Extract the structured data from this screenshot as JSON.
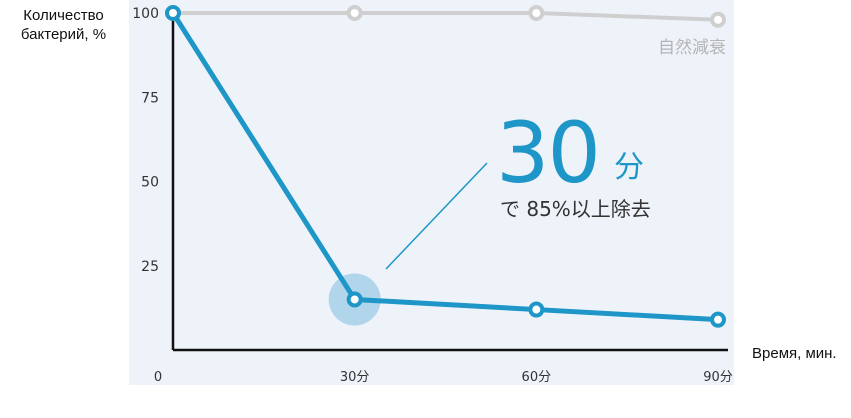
{
  "chart_data": {
    "type": "line",
    "title": "",
    "ylabel": "Количество бактерий, %",
    "xlabel": "Время, мин.",
    "x": [
      0,
      30,
      60,
      90
    ],
    "x_tick_labels": [
      "0",
      "30分",
      "60分",
      "90分"
    ],
    "y_ticks": [
      25,
      50,
      75,
      100
    ],
    "y_tick_labels": [
      "25",
      "50",
      "75",
      "100"
    ],
    "xlim": [
      0,
      90
    ],
    "ylim": [
      0,
      100
    ],
    "grid": false,
    "series": [
      {
        "name": "自然減衰",
        "x": [
          0,
          30,
          60,
          90
        ],
        "values": [
          100,
          100,
          100,
          98
        ],
        "color": "#cfcfcf"
      },
      {
        "name": "",
        "x": [
          0,
          30,
          60,
          90
        ],
        "values": [
          100,
          15,
          12,
          9
        ],
        "color": "#1e96c8"
      }
    ],
    "annotation": {
      "big_value": "30",
      "big_unit": "分",
      "sub_text": "で 85%以上除去",
      "point_x": 30,
      "point_y": 15
    },
    "colors": {
      "plot_background": "#eef3fa",
      "axis": "#111111",
      "highlight": "#1e96c8",
      "highlight_halo": "#9ccbe6",
      "annotation_text": "#333333",
      "tick_text": "#333333"
    }
  }
}
